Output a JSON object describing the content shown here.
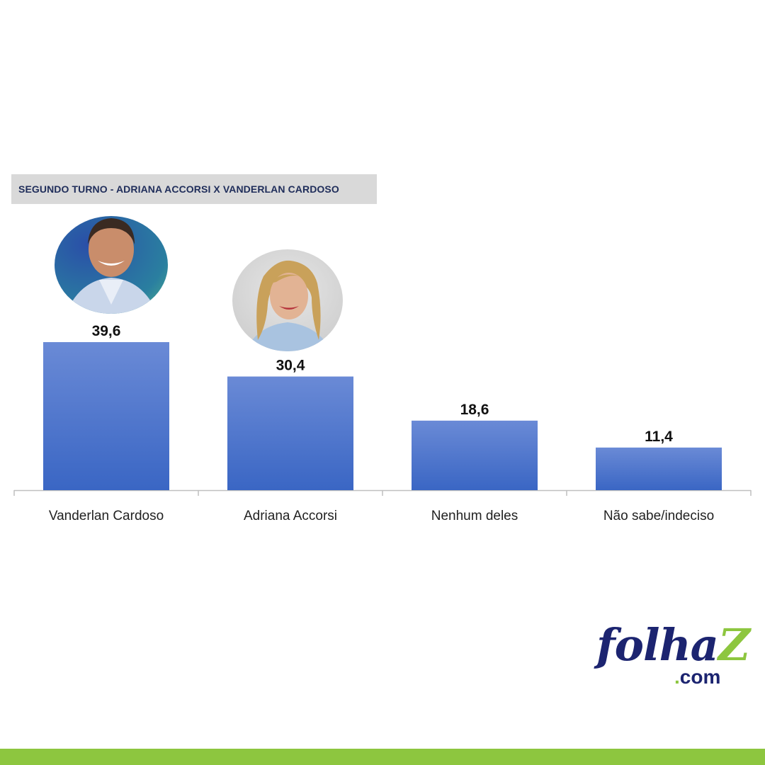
{
  "chart_data": {
    "type": "bar",
    "title": "SEGUNDO TURNO - ADRIANA ACCORSI X VANDERLAN CARDOSO",
    "categories": [
      "Vanderlan Cardoso",
      "Adriana Accorsi",
      "Nenhum deles",
      "Não sabe/indeciso"
    ],
    "values": [
      39.6,
      30.4,
      18.6,
      11.4
    ],
    "value_labels": [
      "39,6",
      "30,4",
      "18,6",
      "11,4"
    ],
    "ylim": [
      0,
      40
    ],
    "grid": false,
    "legend": "none",
    "bar_color_top": "#6a8ad6",
    "bar_color_bottom": "#3a66c4",
    "photos": [
      {
        "category": "Vanderlan Cardoso",
        "name": "candidate-photo-vanderlan"
      },
      {
        "category": "Adriana Accorsi",
        "name": "candidate-photo-adriana"
      }
    ]
  },
  "brand": {
    "main": "folha",
    "z": "Z",
    "sub_dot": ".",
    "sub": "com",
    "color_primary": "#1c2470",
    "color_accent": "#8dc63f"
  }
}
